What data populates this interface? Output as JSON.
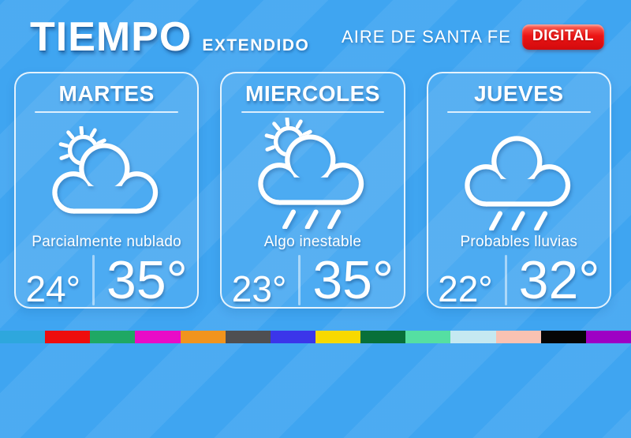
{
  "header": {
    "title": "TIEMPO",
    "subtitle": "EXTENDIDO",
    "brand": "AIRE DE SANTA FE",
    "badge": "DIGITAL"
  },
  "cards": [
    {
      "day": "MARTES",
      "icon": "partly-cloudy",
      "description": "Parcialmente nublado",
      "temp_min": "24°",
      "temp_max": "35°"
    },
    {
      "day": "MIERCOLES",
      "icon": "sun-rain",
      "description": "Algo inestable",
      "temp_min": "23°",
      "temp_max": "35°"
    },
    {
      "day": "JUEVES",
      "icon": "rain",
      "description": "Probables lluvias",
      "temp_min": "22°",
      "temp_max": "32°"
    }
  ],
  "colors": {
    "background": "#3fa5f1",
    "badge_red": "#d20a0d",
    "palette_bar": [
      "#2ea7dd",
      "#ee0d0d",
      "#1fa864",
      "#e90bc7",
      "#f1941d",
      "#4f4f51",
      "#3b35ea",
      "#f8d900",
      "#087039",
      "#55dfa2",
      "#c5e9f1",
      "#f9c2b2",
      "#060606",
      "#9e00c4"
    ]
  }
}
